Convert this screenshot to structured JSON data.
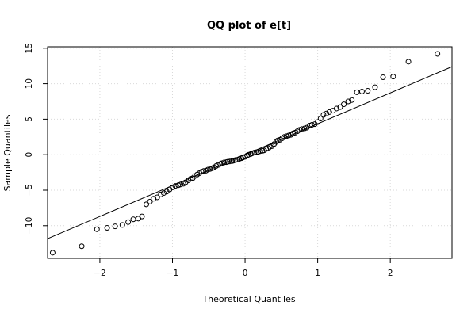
{
  "chart_data": {
    "type": "scatter",
    "title": "QQ plot of e[t]",
    "xlabel": "Theoretical Quantiles",
    "ylabel": "Sample Quantiles",
    "xlim": [
      -2.72,
      2.85
    ],
    "ylim": [
      -14.6,
      15.2
    ],
    "x_ticks": [
      -2,
      -1,
      0,
      1,
      2
    ],
    "y_ticks": [
      -10,
      -5,
      0,
      5,
      10,
      15
    ],
    "grid": true,
    "reference_line": {
      "intercept": 0.0,
      "slope": 4.35
    },
    "points": [
      [
        -2.65,
        -13.8
      ],
      [
        -2.25,
        -12.9
      ],
      [
        -2.04,
        -10.5
      ],
      [
        -1.9,
        -10.3
      ],
      [
        -1.79,
        -10.1
      ],
      [
        -1.69,
        -9.9
      ],
      [
        -1.61,
        -9.5
      ],
      [
        -1.54,
        -9.1
      ],
      [
        -1.47,
        -9.0
      ],
      [
        -1.42,
        -8.7
      ],
      [
        -1.36,
        -7.0
      ],
      [
        -1.31,
        -6.6
      ],
      [
        -1.26,
        -6.2
      ],
      [
        -1.21,
        -6.0
      ],
      [
        -1.16,
        -5.6
      ],
      [
        -1.12,
        -5.4
      ],
      [
        -1.08,
        -5.2
      ],
      [
        -1.04,
        -4.9
      ],
      [
        -1.0,
        -4.6
      ],
      [
        -0.96,
        -4.4
      ],
      [
        -0.92,
        -4.3
      ],
      [
        -0.89,
        -4.2
      ],
      [
        -0.85,
        -4.1
      ],
      [
        -0.82,
        -3.9
      ],
      [
        -0.78,
        -3.6
      ],
      [
        -0.75,
        -3.4
      ],
      [
        -0.72,
        -3.3
      ],
      [
        -0.69,
        -3.0
      ],
      [
        -0.66,
        -2.8
      ],
      [
        -0.63,
        -2.6
      ],
      [
        -0.6,
        -2.4
      ],
      [
        -0.57,
        -2.3
      ],
      [
        -0.54,
        -2.25
      ],
      [
        -0.51,
        -2.1
      ],
      [
        -0.48,
        -2.0
      ],
      [
        -0.45,
        -1.9
      ],
      [
        -0.43,
        -1.8
      ],
      [
        -0.4,
        -1.6
      ],
      [
        -0.37,
        -1.45
      ],
      [
        -0.34,
        -1.3
      ],
      [
        -0.32,
        -1.2
      ],
      [
        -0.29,
        -1.1
      ],
      [
        -0.26,
        -1.05
      ],
      [
        -0.24,
        -1.0
      ],
      [
        -0.21,
        -0.95
      ],
      [
        -0.18,
        -0.9
      ],
      [
        -0.16,
        -0.85
      ],
      [
        -0.13,
        -0.75
      ],
      [
        -0.1,
        -0.7
      ],
      [
        -0.08,
        -0.6
      ],
      [
        -0.05,
        -0.5
      ],
      [
        -0.03,
        -0.4
      ],
      [
        0.0,
        -0.3
      ],
      [
        0.03,
        -0.1
      ],
      [
        0.05,
        0.0
      ],
      [
        0.08,
        0.1
      ],
      [
        0.1,
        0.2
      ],
      [
        0.13,
        0.3
      ],
      [
        0.16,
        0.35
      ],
      [
        0.18,
        0.4
      ],
      [
        0.21,
        0.5
      ],
      [
        0.24,
        0.55
      ],
      [
        0.26,
        0.6
      ],
      [
        0.29,
        0.8
      ],
      [
        0.32,
        0.9
      ],
      [
        0.34,
        1.1
      ],
      [
        0.37,
        1.2
      ],
      [
        0.4,
        1.5
      ],
      [
        0.43,
        1.8
      ],
      [
        0.45,
        2.0
      ],
      [
        0.48,
        2.1
      ],
      [
        0.51,
        2.3
      ],
      [
        0.54,
        2.5
      ],
      [
        0.57,
        2.6
      ],
      [
        0.6,
        2.7
      ],
      [
        0.63,
        2.8
      ],
      [
        0.66,
        3.0
      ],
      [
        0.69,
        3.1
      ],
      [
        0.72,
        3.3
      ],
      [
        0.75,
        3.5
      ],
      [
        0.78,
        3.6
      ],
      [
        0.82,
        3.7
      ],
      [
        0.85,
        3.8
      ],
      [
        0.89,
        4.1
      ],
      [
        0.92,
        4.2
      ],
      [
        0.96,
        4.3
      ],
      [
        1.0,
        4.6
      ],
      [
        1.04,
        5.1
      ],
      [
        1.08,
        5.6
      ],
      [
        1.12,
        5.8
      ],
      [
        1.16,
        6.0
      ],
      [
        1.21,
        6.2
      ],
      [
        1.26,
        6.5
      ],
      [
        1.31,
        6.7
      ],
      [
        1.36,
        7.1
      ],
      [
        1.42,
        7.5
      ],
      [
        1.47,
        7.7
      ],
      [
        1.54,
        8.8
      ],
      [
        1.61,
        8.9
      ],
      [
        1.69,
        9.0
      ],
      [
        1.79,
        9.5
      ],
      [
        1.9,
        10.9
      ],
      [
        2.04,
        11.0
      ],
      [
        2.25,
        13.1
      ],
      [
        2.65,
        14.2
      ]
    ]
  }
}
